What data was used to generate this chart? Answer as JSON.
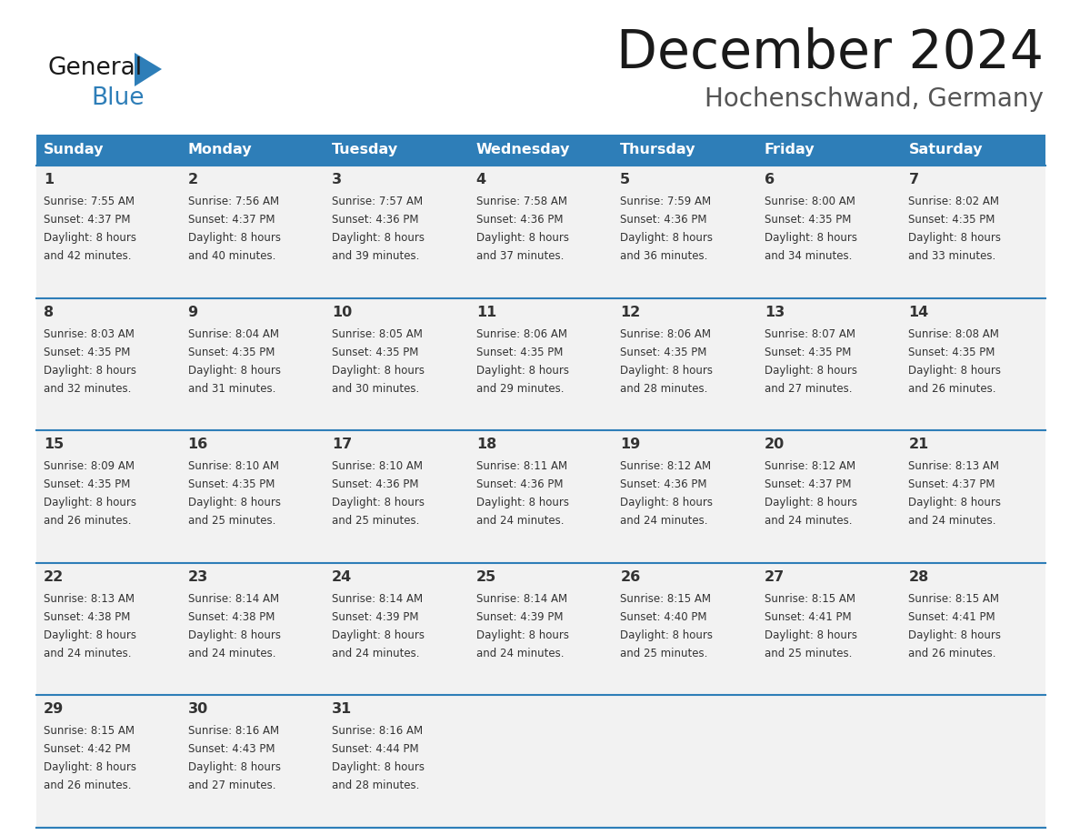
{
  "title": "December 2024",
  "subtitle": "Hochenschwand, Germany",
  "header_color": "#2E7EB8",
  "header_text_color": "#FFFFFF",
  "cell_bg_color": "#F2F2F2",
  "text_color": "#333333",
  "line_color": "#2E7EB8",
  "day_names": [
    "Sunday",
    "Monday",
    "Tuesday",
    "Wednesday",
    "Thursday",
    "Friday",
    "Saturday"
  ],
  "weeks": [
    [
      {
        "day": "1",
        "sunrise": "7:55 AM",
        "sunset": "4:37 PM",
        "daylight": "8 hours",
        "minutes": "and 42 minutes."
      },
      {
        "day": "2",
        "sunrise": "7:56 AM",
        "sunset": "4:37 PM",
        "daylight": "8 hours",
        "minutes": "and 40 minutes."
      },
      {
        "day": "3",
        "sunrise": "7:57 AM",
        "sunset": "4:36 PM",
        "daylight": "8 hours",
        "minutes": "and 39 minutes."
      },
      {
        "day": "4",
        "sunrise": "7:58 AM",
        "sunset": "4:36 PM",
        "daylight": "8 hours",
        "minutes": "and 37 minutes."
      },
      {
        "day": "5",
        "sunrise": "7:59 AM",
        "sunset": "4:36 PM",
        "daylight": "8 hours",
        "minutes": "and 36 minutes."
      },
      {
        "day": "6",
        "sunrise": "8:00 AM",
        "sunset": "4:35 PM",
        "daylight": "8 hours",
        "minutes": "and 34 minutes."
      },
      {
        "day": "7",
        "sunrise": "8:02 AM",
        "sunset": "4:35 PM",
        "daylight": "8 hours",
        "minutes": "and 33 minutes."
      }
    ],
    [
      {
        "day": "8",
        "sunrise": "8:03 AM",
        "sunset": "4:35 PM",
        "daylight": "8 hours",
        "minutes": "and 32 minutes."
      },
      {
        "day": "9",
        "sunrise": "8:04 AM",
        "sunset": "4:35 PM",
        "daylight": "8 hours",
        "minutes": "and 31 minutes."
      },
      {
        "day": "10",
        "sunrise": "8:05 AM",
        "sunset": "4:35 PM",
        "daylight": "8 hours",
        "minutes": "and 30 minutes."
      },
      {
        "day": "11",
        "sunrise": "8:06 AM",
        "sunset": "4:35 PM",
        "daylight": "8 hours",
        "minutes": "and 29 minutes."
      },
      {
        "day": "12",
        "sunrise": "8:06 AM",
        "sunset": "4:35 PM",
        "daylight": "8 hours",
        "minutes": "and 28 minutes."
      },
      {
        "day": "13",
        "sunrise": "8:07 AM",
        "sunset": "4:35 PM",
        "daylight": "8 hours",
        "minutes": "and 27 minutes."
      },
      {
        "day": "14",
        "sunrise": "8:08 AM",
        "sunset": "4:35 PM",
        "daylight": "8 hours",
        "minutes": "and 26 minutes."
      }
    ],
    [
      {
        "day": "15",
        "sunrise": "8:09 AM",
        "sunset": "4:35 PM",
        "daylight": "8 hours",
        "minutes": "and 26 minutes."
      },
      {
        "day": "16",
        "sunrise": "8:10 AM",
        "sunset": "4:35 PM",
        "daylight": "8 hours",
        "minutes": "and 25 minutes."
      },
      {
        "day": "17",
        "sunrise": "8:10 AM",
        "sunset": "4:36 PM",
        "daylight": "8 hours",
        "minutes": "and 25 minutes."
      },
      {
        "day": "18",
        "sunrise": "8:11 AM",
        "sunset": "4:36 PM",
        "daylight": "8 hours",
        "minutes": "and 24 minutes."
      },
      {
        "day": "19",
        "sunrise": "8:12 AM",
        "sunset": "4:36 PM",
        "daylight": "8 hours",
        "minutes": "and 24 minutes."
      },
      {
        "day": "20",
        "sunrise": "8:12 AM",
        "sunset": "4:37 PM",
        "daylight": "8 hours",
        "minutes": "and 24 minutes."
      },
      {
        "day": "21",
        "sunrise": "8:13 AM",
        "sunset": "4:37 PM",
        "daylight": "8 hours",
        "minutes": "and 24 minutes."
      }
    ],
    [
      {
        "day": "22",
        "sunrise": "8:13 AM",
        "sunset": "4:38 PM",
        "daylight": "8 hours",
        "minutes": "and 24 minutes."
      },
      {
        "day": "23",
        "sunrise": "8:14 AM",
        "sunset": "4:38 PM",
        "daylight": "8 hours",
        "minutes": "and 24 minutes."
      },
      {
        "day": "24",
        "sunrise": "8:14 AM",
        "sunset": "4:39 PM",
        "daylight": "8 hours",
        "minutes": "and 24 minutes."
      },
      {
        "day": "25",
        "sunrise": "8:14 AM",
        "sunset": "4:39 PM",
        "daylight": "8 hours",
        "minutes": "and 24 minutes."
      },
      {
        "day": "26",
        "sunrise": "8:15 AM",
        "sunset": "4:40 PM",
        "daylight": "8 hours",
        "minutes": "and 25 minutes."
      },
      {
        "day": "27",
        "sunrise": "8:15 AM",
        "sunset": "4:41 PM",
        "daylight": "8 hours",
        "minutes": "and 25 minutes."
      },
      {
        "day": "28",
        "sunrise": "8:15 AM",
        "sunset": "4:41 PM",
        "daylight": "8 hours",
        "minutes": "and 26 minutes."
      }
    ],
    [
      {
        "day": "29",
        "sunrise": "8:15 AM",
        "sunset": "4:42 PM",
        "daylight": "8 hours",
        "minutes": "and 26 minutes."
      },
      {
        "day": "30",
        "sunrise": "8:16 AM",
        "sunset": "4:43 PM",
        "daylight": "8 hours",
        "minutes": "and 27 minutes."
      },
      {
        "day": "31",
        "sunrise": "8:16 AM",
        "sunset": "4:44 PM",
        "daylight": "8 hours",
        "minutes": "and 28 minutes."
      },
      null,
      null,
      null,
      null
    ]
  ]
}
